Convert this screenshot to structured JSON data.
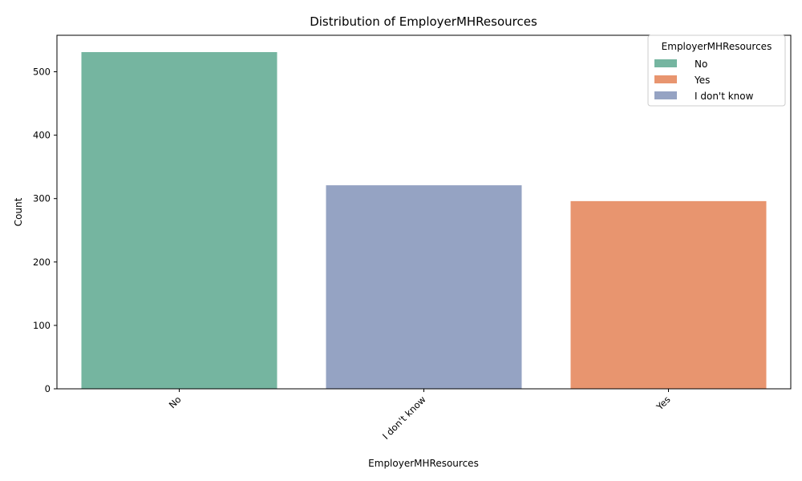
{
  "chart_data": {
    "type": "bar",
    "title": "Distribution of EmployerMHResources",
    "xlabel": "EmployerMHResources",
    "ylabel": "Count",
    "categories": [
      "No",
      "I don't know",
      "Yes"
    ],
    "values": [
      531,
      321,
      296
    ],
    "bar_colors": [
      "#75b5a0",
      "#95a3c3",
      "#e8956f"
    ],
    "ylim": [
      0,
      557.55
    ],
    "yticks": [
      0,
      100,
      200,
      300,
      400,
      500
    ],
    "grid": false,
    "legend": {
      "title": "EmployerMHResources",
      "placement": "top-right",
      "entries": [
        {
          "label": "No",
          "color": "#75b5a0"
        },
        {
          "label": "Yes",
          "color": "#e8956f"
        },
        {
          "label": "I don't know",
          "color": "#95a3c3"
        }
      ]
    }
  }
}
